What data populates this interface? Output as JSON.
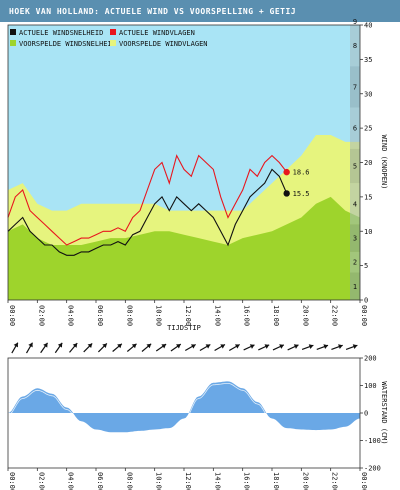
{
  "title": "HOEK VAN HOLLAND: ACTUELE WIND VS VOORSPELLING + GETIJ",
  "colors": {
    "title_bg": "#5a8fb0",
    "sky": "#a9e4f5",
    "forecast_speed": "#9ed42c",
    "forecast_gust": "#e6f47e",
    "actual_speed": "#111111",
    "actual_gust": "#e8161e",
    "tide": "#6aa8e6"
  },
  "chart_data": [
    {
      "type": "line",
      "title": "HOEK VAN HOLLAND: ACTUELE WIND VS VOORSPELLING + GETIJ",
      "legend": [
        "ACTUELE WINDSNELHEID",
        "ACTUELE WINDVLAGEN",
        "VOORSPELDE WINDSNELHEID",
        "VOORSPELDE WINDVLAGEN"
      ],
      "legend_placement": "top-left",
      "x_ticks": [
        "00:00",
        "02:00",
        "04:00",
        "06:00",
        "08:00",
        "10:00",
        "12:00",
        "14:00",
        "16:00",
        "18:00",
        "20:00",
        "22:00",
        "00:00"
      ],
      "xlabel": "TIJDSTIP",
      "ylabel": "WIND (KNOPEN)",
      "ylim": [
        0,
        40
      ],
      "y_ticks": [
        0,
        5,
        10,
        15,
        20,
        25,
        30,
        35,
        40
      ],
      "beaufort_labels": [
        "1",
        "2",
        "3",
        "4",
        "5",
        "6",
        "7",
        "8",
        "9"
      ],
      "series": [
        {
          "name": "VOORSPELDE WINDVLAGEN",
          "x": [
            0,
            1,
            2,
            3,
            4,
            5,
            6,
            7,
            8,
            9,
            10,
            11,
            12,
            13,
            14,
            15,
            16,
            17,
            18,
            19,
            20,
            21,
            22,
            23,
            24
          ],
          "values": [
            16,
            17,
            14,
            13,
            13,
            14,
            14,
            14,
            14,
            14,
            14,
            13,
            13,
            13,
            13,
            13,
            13,
            15,
            17,
            19,
            21,
            24,
            24,
            23,
            23
          ]
        },
        {
          "name": "VOORSPELDE WINDSNELHEID",
          "x": [
            0,
            1,
            2,
            3,
            4,
            5,
            6,
            7,
            8,
            9,
            10,
            11,
            12,
            13,
            14,
            15,
            16,
            17,
            18,
            19,
            20,
            21,
            22,
            23,
            24
          ],
          "values": [
            10,
            11,
            9,
            8,
            8,
            8,
            8.5,
            9,
            9,
            9.5,
            10,
            10,
            9.5,
            9,
            8.5,
            8,
            9,
            9.5,
            10,
            11,
            12,
            14,
            15,
            13,
            12
          ]
        },
        {
          "name": "ACTUELE WINDVLAGEN",
          "x": [
            0,
            0.5,
            1,
            1.5,
            2,
            2.5,
            3,
            3.5,
            4,
            4.5,
            5,
            5.5,
            6,
            6.5,
            7,
            7.5,
            8,
            8.5,
            9,
            9.5,
            10,
            10.5,
            11,
            11.5,
            12,
            12.5,
            13,
            13.5,
            14,
            14.5,
            15,
            15.5,
            16,
            16.5,
            17,
            17.5,
            18,
            18.5,
            19
          ],
          "values": [
            12,
            15,
            16,
            13,
            12,
            11,
            10,
            9,
            8,
            8.5,
            9,
            9,
            9.5,
            10,
            10,
            10.5,
            10,
            12,
            13,
            16,
            19,
            20,
            17,
            21,
            19,
            18,
            21,
            20,
            19,
            15,
            12,
            14,
            16,
            19,
            18,
            20,
            21,
            20,
            18.6
          ]
        },
        {
          "name": "ACTUELE WINDSNELHEID",
          "x": [
            0,
            0.5,
            1,
            1.5,
            2,
            2.5,
            3,
            3.5,
            4,
            4.5,
            5,
            5.5,
            6,
            6.5,
            7,
            7.5,
            8,
            8.5,
            9,
            9.5,
            10,
            10.5,
            11,
            11.5,
            12,
            12.5,
            13,
            13.5,
            14,
            14.5,
            15,
            15.5,
            16,
            16.5,
            17,
            17.5,
            18,
            18.5,
            19
          ],
          "values": [
            10,
            11,
            12,
            10,
            9,
            8,
            8,
            7,
            6.5,
            6.5,
            7,
            7,
            7.5,
            8,
            8,
            8.5,
            8,
            9.5,
            10,
            12,
            14,
            15,
            13,
            15,
            14,
            13,
            14,
            13,
            12,
            10,
            8,
            11,
            13,
            15,
            16,
            17,
            19,
            18,
            15.5
          ]
        }
      ],
      "annotations": [
        {
          "x": 19,
          "y": 18.6,
          "label": "18.6"
        },
        {
          "x": 19,
          "y": 15.5,
          "label": "15.5"
        }
      ],
      "wind_directions_deg": [
        210,
        210,
        215,
        215,
        220,
        225,
        225,
        230,
        230,
        230,
        235,
        235,
        240,
        240,
        240,
        240,
        245,
        245,
        245,
        245,
        250,
        250,
        250,
        250
      ]
    },
    {
      "type": "area",
      "x_ticks": [
        "00:00",
        "02:00",
        "04:00",
        "06:00",
        "08:00",
        "10:00",
        "12:00",
        "14:00",
        "16:00",
        "18:00",
        "20:00",
        "22:00",
        "00:00"
      ],
      "ylabel": "WATERSTAND (CM)",
      "ylim": [
        -200,
        200
      ],
      "y_ticks": [
        -200,
        -100,
        0,
        100,
        200
      ],
      "series": [
        {
          "name": "GETIJ",
          "x": [
            0,
            1,
            2,
            3,
            4,
            5,
            6,
            7,
            8,
            9,
            10,
            11,
            12,
            13,
            14,
            15,
            16,
            17,
            18,
            19,
            20,
            21,
            22,
            23,
            24
          ],
          "values": [
            0,
            60,
            90,
            70,
            20,
            -30,
            -60,
            -70,
            -70,
            -65,
            -60,
            -55,
            -20,
            60,
            110,
            115,
            90,
            40,
            -20,
            -55,
            -60,
            -62,
            -60,
            -50,
            -20
          ]
        }
      ]
    }
  ]
}
